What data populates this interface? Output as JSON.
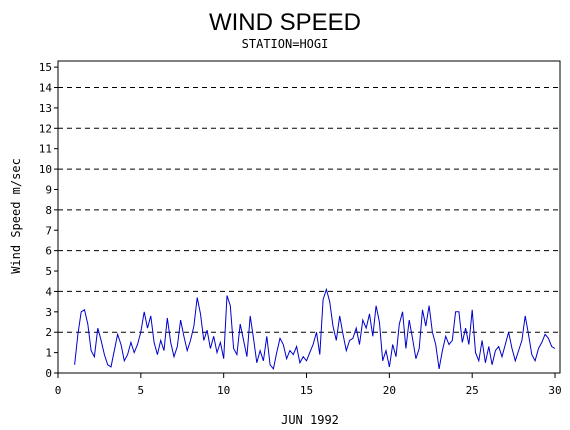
{
  "chart_data": {
    "type": "line",
    "title": "WIND SPEED",
    "subtitle": "STATION=HOGI",
    "xlabel": "JUN 1992",
    "ylabel": "Wind Speed m/sec",
    "xlim": [
      0,
      30.3
    ],
    "ylim": [
      0,
      15.3
    ],
    "x_ticks": [
      0,
      5,
      10,
      15,
      20,
      25,
      30
    ],
    "y_ticks": [
      0,
      1,
      2,
      3,
      4,
      5,
      6,
      7,
      8,
      9,
      10,
      11,
      12,
      13,
      14,
      15
    ],
    "dashed_gridlines_y": [
      0,
      2,
      4,
      6,
      8,
      10,
      12,
      14
    ],
    "line_color": "#0000cc",
    "series": [
      {
        "x": [
          1.0,
          1.2,
          1.4,
          1.6,
          1.8,
          2.0,
          2.2,
          2.4,
          2.6,
          2.8,
          3.0,
          3.2,
          3.4,
          3.6,
          3.8,
          4.0,
          4.2,
          4.4,
          4.6,
          4.8,
          5.0,
          5.2,
          5.4,
          5.6,
          5.8,
          6.0,
          6.2,
          6.4,
          6.6,
          6.8,
          7.0,
          7.2,
          7.4,
          7.6,
          7.8,
          8.0,
          8.2,
          8.4,
          8.6,
          8.8,
          9.0,
          9.2,
          9.4,
          9.6,
          9.8,
          10.0,
          10.2,
          10.4,
          10.6,
          10.8,
          11.0,
          11.2,
          11.4,
          11.6,
          11.8,
          12.0,
          12.2,
          12.4,
          12.6,
          12.8,
          13.0,
          13.2,
          13.4,
          13.6,
          13.8,
          14.0,
          14.2,
          14.4,
          14.6,
          14.8,
          15.0,
          15.2,
          15.4,
          15.6,
          15.8,
          16.0,
          16.2,
          16.4,
          16.6,
          16.8,
          17.0,
          17.2,
          17.4,
          17.6,
          17.8,
          18.0,
          18.2,
          18.4,
          18.6,
          18.8,
          19.0,
          19.2,
          19.4,
          19.6,
          19.8,
          20.0,
          20.2,
          20.4,
          20.6,
          20.8,
          21.0,
          21.2,
          21.4,
          21.6,
          21.8,
          22.0,
          22.2,
          22.4,
          22.6,
          22.8,
          23.0,
          23.2,
          23.4,
          23.6,
          23.8,
          24.0,
          24.2,
          24.4,
          24.6,
          24.8,
          25.0,
          25.2,
          25.4,
          25.6,
          25.8,
          26.0,
          26.2,
          26.4,
          26.6,
          26.8,
          27.0,
          27.2,
          27.4,
          27.6,
          27.8,
          28.0,
          28.2,
          28.4,
          28.6,
          28.8,
          29.0,
          29.2,
          29.4,
          29.6,
          29.8,
          30.0
        ],
        "y": [
          0.4,
          1.9,
          3.0,
          3.1,
          2.4,
          1.1,
          0.8,
          2.2,
          1.6,
          0.9,
          0.4,
          0.3,
          1.1,
          1.9,
          1.4,
          0.6,
          0.9,
          1.5,
          1.0,
          1.4,
          2.0,
          3.0,
          2.2,
          2.8,
          1.5,
          0.9,
          1.6,
          1.1,
          2.7,
          1.5,
          0.8,
          1.3,
          2.6,
          1.8,
          1.1,
          1.6,
          2.3,
          3.7,
          2.9,
          1.6,
          2.1,
          1.2,
          1.8,
          1.0,
          1.5,
          0.7,
          3.8,
          3.3,
          1.2,
          0.9,
          2.4,
          1.6,
          0.8,
          2.8,
          1.7,
          0.5,
          1.1,
          0.6,
          1.8,
          0.4,
          0.2,
          1.0,
          1.7,
          1.4,
          0.7,
          1.1,
          0.9,
          1.3,
          0.5,
          0.8,
          0.6,
          1.0,
          1.4,
          2.0,
          0.9,
          3.6,
          4.1,
          3.5,
          2.3,
          1.6,
          2.8,
          1.9,
          1.1,
          1.6,
          1.7,
          2.2,
          1.4,
          2.6,
          2.2,
          2.9,
          1.8,
          3.3,
          2.5,
          0.6,
          1.1,
          0.3,
          1.4,
          0.8,
          2.4,
          3.0,
          1.2,
          2.6,
          1.7,
          0.7,
          1.2,
          3.1,
          2.3,
          3.3,
          2.0,
          1.4,
          0.2,
          1.1,
          1.8,
          1.4,
          1.6,
          3.0,
          3.0,
          1.5,
          2.2,
          1.4,
          3.1,
          1.0,
          0.6,
          1.6,
          0.5,
          1.3,
          0.4,
          1.1,
          1.3,
          0.8,
          1.4,
          2.0,
          1.2,
          0.6,
          1.1,
          1.6,
          2.8,
          1.9,
          0.9,
          0.6,
          1.2,
          1.5,
          1.9,
          1.7,
          1.3,
          1.2
        ]
      }
    ]
  }
}
